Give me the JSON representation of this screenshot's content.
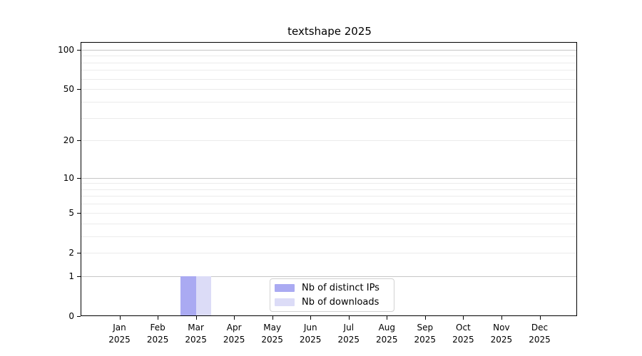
{
  "chart_data": {
    "type": "bar",
    "title": "textshape 2025",
    "categories": [
      "Jan",
      "Feb",
      "Mar",
      "Apr",
      "May",
      "Jun",
      "Jul",
      "Aug",
      "Sep",
      "Oct",
      "Nov",
      "Dec"
    ],
    "x_year_label": "2025",
    "series": [
      {
        "name": "Nb of distinct IPs",
        "color": "#aaaaf2",
        "values": [
          0,
          0,
          1,
          0,
          0,
          0,
          0,
          0,
          0,
          0,
          0,
          0
        ]
      },
      {
        "name": "Nb of downloads",
        "color": "#dcdcf7",
        "values": [
          0,
          0,
          1,
          0,
          0,
          0,
          0,
          0,
          0,
          0,
          0,
          0
        ]
      }
    ],
    "yscale": "log1p",
    "ylim": [
      0,
      113
    ],
    "yticks": [
      0,
      1,
      2,
      5,
      10,
      20,
      50,
      100
    ],
    "major_gridline_values": [
      1,
      10,
      100
    ],
    "minor_gridline_values": [
      2,
      3,
      4,
      5,
      6,
      7,
      8,
      9,
      20,
      30,
      40,
      50,
      60,
      70,
      80,
      90
    ],
    "grid": "horizontal",
    "legend_position": "lower center, inside plot",
    "colors": {
      "major_grid": "#c6c6c6",
      "minor_grid": "#ebebeb",
      "axis": "#000000",
      "background": "#ffffff"
    }
  }
}
